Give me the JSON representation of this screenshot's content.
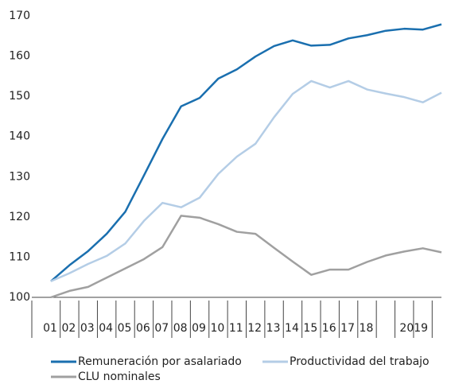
{
  "chart_data": {
    "type": "line",
    "categories": [
      "01",
      "02",
      "03",
      "04",
      "05",
      "06",
      "07",
      "08",
      "09",
      "10",
      "11",
      "12",
      "13",
      "14",
      "15",
      "16",
      "17",
      "18",
      null,
      "2019",
      null,
      null
    ],
    "series": [
      {
        "name": "Remuneración por asalariado",
        "color": "#1a6faf",
        "values": [
          104,
          108,
          111.5,
          115.8,
          121.3,
          130.3,
          139.4,
          147.5,
          149.6,
          154.4,
          156.7,
          159.9,
          162.5,
          163.9,
          162.6,
          162.8,
          164.4,
          165.2,
          166.3,
          166.8,
          166.6,
          167.9
        ]
      },
      {
        "name": "Productividad del trabajo",
        "color": "#b4cde6",
        "values": [
          104,
          106,
          108.3,
          110.3,
          113.4,
          119,
          123.5,
          122.4,
          124.8,
          130.7,
          135,
          138.2,
          144.8,
          150.6,
          153.8,
          152.2,
          153.8,
          151.7,
          150.7,
          149.8,
          148.5,
          150.9
        ]
      },
      {
        "name": "CLU nominales",
        "color": "#a0a0a0",
        "values": [
          100,
          101.6,
          102.6,
          104.9,
          107.2,
          109.5,
          112.5,
          120.3,
          119.8,
          118.2,
          116.3,
          115.8,
          112.3,
          108.9,
          105.6,
          106.9,
          106.9,
          108.8,
          110.4,
          111.4,
          112.2,
          111.2
        ]
      }
    ],
    "ylim": [
      100,
      170
    ],
    "yticks": [
      100,
      110,
      120,
      130,
      140,
      150,
      160,
      170
    ],
    "grid": false,
    "legend": "bottom"
  }
}
